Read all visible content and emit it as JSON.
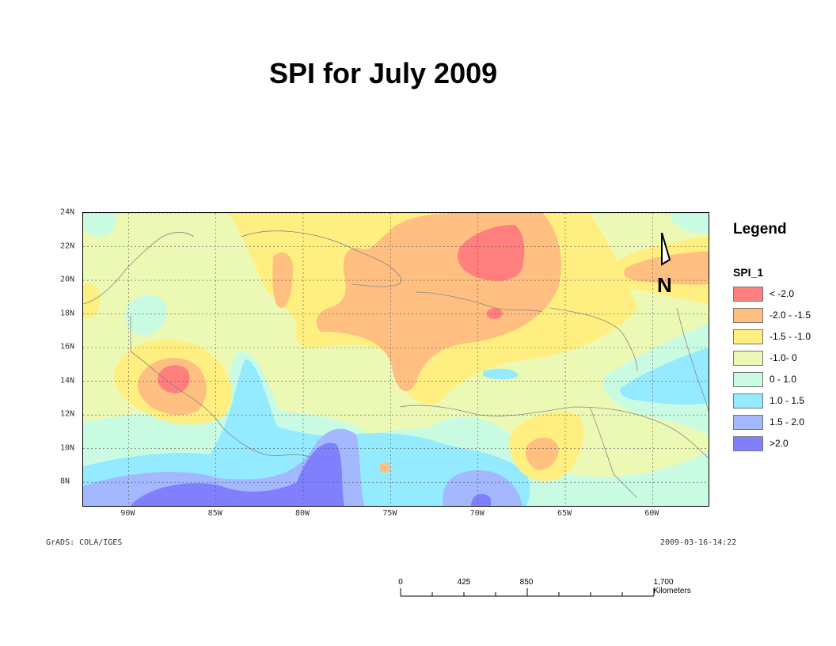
{
  "title": "SPI for July 2009",
  "y_labels": [
    {
      "text": "24N",
      "lat": 24
    },
    {
      "text": "22N",
      "lat": 22
    },
    {
      "text": "20N",
      "lat": 20
    },
    {
      "text": "18N",
      "lat": 18
    },
    {
      "text": "16N",
      "lat": 16
    },
    {
      "text": "14N",
      "lat": 14
    },
    {
      "text": "12N",
      "lat": 12
    },
    {
      "text": "10N",
      "lat": 10
    },
    {
      "text": "8N",
      "lat": 8
    }
  ],
  "x_labels": [
    {
      "text": "90W",
      "lon": -90
    },
    {
      "text": "85W",
      "lon": -85
    },
    {
      "text": "80W",
      "lon": -80
    },
    {
      "text": "75W",
      "lon": -75
    },
    {
      "text": "70W",
      "lon": -70
    },
    {
      "text": "65W",
      "lon": -65
    },
    {
      "text": "60W",
      "lon": -60
    }
  ],
  "footer": {
    "left": "GrADS: COLA/IGES",
    "right": "2009-03-16-14:22"
  },
  "legend": {
    "title": "Legend",
    "field": "SPI_1",
    "items": [
      {
        "label": "< -2.0",
        "color": "#ff7f7f"
      },
      {
        "label": "-2.0 - -1.5",
        "color": "#ffbf80"
      },
      {
        "label": "-1.5 - -1.0",
        "color": "#ffef80"
      },
      {
        "label": "-1.0- 0",
        "color": "#ecf9b5"
      },
      {
        "label": "0 - 1.0",
        "color": "#c9fbe2"
      },
      {
        "label": "1.0 - 1.5",
        "color": "#94eaff"
      },
      {
        "label": "1.5 - 2.0",
        "color": "#a3b8ff"
      },
      {
        "label": ">2.0",
        "color": "#8080ff"
      }
    ]
  },
  "north_arrow": {
    "label": "N"
  },
  "scale_bar": {
    "labels": [
      "0",
      "425",
      "850",
      "1,700 Kilometers"
    ]
  },
  "colors": {
    "background": "#ffffff",
    "grid": "#555555",
    "coast": "#888888"
  }
}
